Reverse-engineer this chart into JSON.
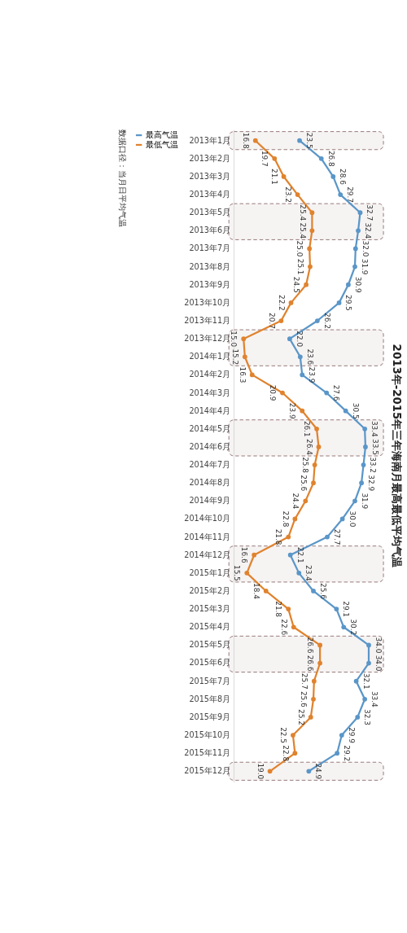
{
  "chart_data": {
    "type": "line",
    "title": "2013年-2015年三年海南月最高最低平均气温",
    "categories": [
      "2013年1月",
      "2013年2月",
      "2013年3月",
      "2013年4月",
      "2013年5月",
      "2013年6月",
      "2013年7月",
      "2013年8月",
      "2013年9月",
      "2013年10月",
      "2013年11月",
      "2013年12月",
      "2014年1月",
      "2014年2月",
      "2014年3月",
      "2014年4月",
      "2014年5月",
      "2014年6月",
      "2014年7月",
      "2014年8月",
      "2014年9月",
      "2014年10月",
      "2014年11月",
      "2014年12月",
      "2015年1月",
      "2015年2月",
      "2015年3月",
      "2015年4月",
      "2015年5月",
      "2015年6月",
      "2015年7月",
      "2015年8月",
      "2015年9月",
      "2015年10月",
      "2015年11月",
      "2015年12月"
    ],
    "series": [
      {
        "name": "最高气温",
        "color": "#5a96c8",
        "values": [
          23.5,
          26.8,
          28.6,
          29.7,
          32.7,
          32.4,
          32.0,
          31.9,
          30.9,
          29.5,
          26.2,
          22.0,
          23.6,
          23.9,
          27.6,
          30.5,
          33.4,
          33.5,
          33.2,
          32.9,
          31.9,
          30.0,
          27.7,
          22.1,
          23.4,
          25.6,
          29.1,
          30.2,
          34.0,
          34.0,
          32.1,
          33.4,
          32.3,
          29.9,
          29.2,
          24.9
        ],
        "value_labels": [
          "23.5",
          "26.8",
          "28.6",
          "29.7",
          "32.7",
          "32.4",
          "32.0",
          "31.9",
          "30.9",
          "29.5",
          "26.2",
          "22.0",
          "23.6",
          "23.9",
          "27.6",
          "30.5",
          "33.4",
          "33.5",
          "33.2",
          "32.9",
          "31.9",
          "30.0",
          "27.7",
          "22.1",
          "23.4",
          "25.6",
          "29.1",
          "30.2",
          "34.0",
          "34.0",
          "32.1",
          "33.4",
          "32.3",
          "29.9",
          "29.2",
          "24.9"
        ]
      },
      {
        "name": "最低气温",
        "color": "#e0832e",
        "values": [
          16.8,
          19.7,
          21.1,
          23.2,
          25.4,
          25.4,
          25.0,
          25.1,
          24.5,
          22.2,
          20.7,
          15.0,
          15.2,
          16.3,
          20.9,
          23.9,
          26.1,
          26.4,
          25.8,
          25.6,
          24.4,
          22.8,
          21.8,
          16.6,
          15.5,
          18.4,
          21.8,
          22.6,
          26.6,
          26.6,
          25.7,
          25.6,
          25.2,
          22.5,
          22.8,
          19.0
        ],
        "value_labels": [
          "16.8",
          "19.7",
          "21.1",
          "23.2",
          "25.4",
          "25.4",
          "25.0",
          "25.1",
          "24.5",
          "22.2",
          "20.7",
          "15.0",
          "15.2",
          "16.3",
          "20.9",
          "23.9",
          "26.1",
          "26.4",
          "25.8",
          "25.6",
          "24.4",
          "22.8",
          "21.8",
          "16.6",
          "15.5",
          "18.4",
          "21.8",
          "22.6",
          "26.6",
          "26.6",
          "25.7",
          "25.6",
          "25.2",
          "22.5",
          "22.8",
          "19.0"
        ]
      }
    ],
    "bands": [
      {
        "axis": "y",
        "from": "2013年1月",
        "to": "2013年1月",
        "color": "#8c6b6b"
      },
      {
        "axis": "y",
        "from": "2013年5月",
        "to": "2013年6月",
        "color": "#8c6b6b"
      },
      {
        "axis": "y",
        "from": "2013年12月",
        "to": "2014年1月",
        "color": "#8c6b6b"
      },
      {
        "axis": "y",
        "from": "2014年5月",
        "to": "2014年6月",
        "color": "#8c6b6b"
      },
      {
        "axis": "y",
        "from": "2014年12月",
        "to": "2015年1月",
        "color": "#8c6b6b"
      },
      {
        "axis": "y",
        "from": "2015年5月",
        "to": "2015年6月",
        "color": "#8c6b6b"
      },
      {
        "axis": "y",
        "from": "2015年12月",
        "to": "2015年12月",
        "color": "#8c6b6b"
      }
    ],
    "annotations": [
      "数据口径：当月日平均气温"
    ],
    "orientation": "horizontal",
    "marker": "circle",
    "line_style": "solid",
    "legend": "left",
    "grid": false
  }
}
